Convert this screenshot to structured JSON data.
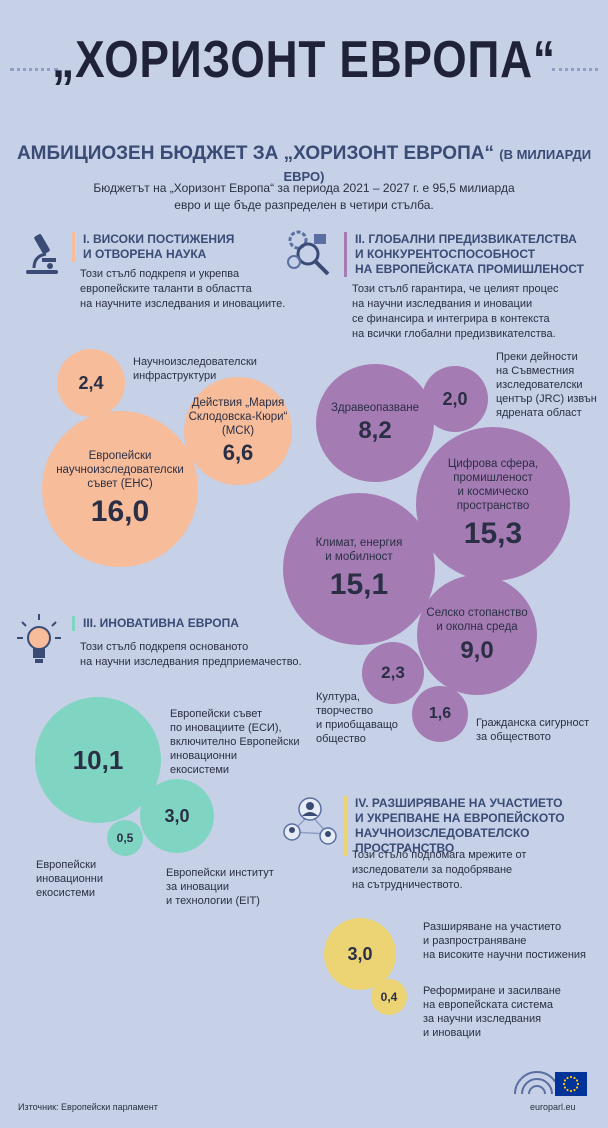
{
  "title": "„ХОРИЗОНТ ЕВРОПА“",
  "subtitle": "АМБИЦИОЗЕН БЮДЖЕТ ЗА „ХОРИЗОНТ ЕВРОПА“",
  "subtitle_unit": "(В МИЛИАРДИ ЕВРО)",
  "intro_line1": "Бюджетът на „Хоризонт Европа“ за периода 2021 – 2027 г. е 95,5 милиарда",
  "intro_line2": "евро и ще бъде разпределен в четири стълба.",
  "colors": {
    "background": "#c6d0e6",
    "pillar1": "#f7bc9a",
    "pillar2": "#a57bb3",
    "pillar3": "#7fd5c2",
    "pillar4": "#ecd374"
  },
  "pillar1": {
    "icon": "microscope-icon",
    "title1": "I. ВИСОКИ ПОСТИЖЕНИЯ",
    "title2": "И ОТВОРЕНА НАУКА",
    "desc1": "Този стълб подкрепя и укрепва",
    "desc2": "европейските таланти в областта",
    "desc3": "на научните изследвания и иновациите.",
    "infra_value": "2,4",
    "infra_label1": "Научноизследователски",
    "infra_label2": "инфраструктури",
    "msca_label1": "Действия „Мария",
    "msca_label2": "Склодовска-Кюри“",
    "msca_label3": "(МСК)",
    "msca_value": "6,6",
    "erc_label1": "Европейски",
    "erc_label2": "научноизследователски",
    "erc_label3": "съвет (ЕНС)",
    "erc_value": "16,0"
  },
  "pillar2": {
    "icon": "gears-magnifier-icon",
    "title1": "II. ГЛОБАЛНИ ПРЕДИЗВИКАТЕЛСТВА",
    "title2": "И КОНКУРЕНТОСПОСОБНОСТ",
    "title3": "НА ЕВРОПЕЙСКАТА ПРОМИШЛЕНОСТ",
    "desc1": "Този стълб гарантира, че целият процес",
    "desc2": "на научни изследвания и иновации",
    "desc3": "се финансира и интегрира в контекста",
    "desc4": "на всички глобални предизвикателства.",
    "jrc_value": "2,0",
    "jrc_label1": "Преки дейности",
    "jrc_label2": "на Съвместния",
    "jrc_label3": "изследователски",
    "jrc_label4": "център (JRC) извън",
    "jrc_label5": "ядрената област",
    "health_label": "Здравеопазване",
    "health_value": "8,2",
    "digital_label1": "Цифрова сфера,",
    "digital_label2": "промишленост",
    "digital_label3": "и космическо",
    "digital_label4": "пространство",
    "digital_value": "15,3",
    "climate_label1": "Климат, енергия",
    "climate_label2": "и мобилност",
    "climate_value": "15,1",
    "food_label1": "Селско стопанство",
    "food_label2": "и околна среда",
    "food_value": "9,0",
    "culture_value": "2,3",
    "culture_label1": "Култура,",
    "culture_label2": "творчество",
    "culture_label3": "и приобщаващо",
    "culture_label4": "общество",
    "security_value": "1,6",
    "security_label1": "Гражданска сигурност",
    "security_label2": "за обществото"
  },
  "pillar3": {
    "icon": "lightbulb-icon",
    "title": "III. ИНОВАТИВНА ЕВРОПА",
    "desc1": "Този стълб подкрепя основаното",
    "desc2": "на научни изследвания предприемачество.",
    "eic_value": "10,1",
    "eic_label1": "Европейски съвет",
    "eic_label2": "по иновациите (ЕСИ),",
    "eic_label3": "включително Европейски",
    "eic_label4": "иновационни",
    "eic_label5": "екосистеми",
    "eit_value": "3,0",
    "eit_label1": "Европейски институт",
    "eit_label2": "за иновации",
    "eit_label3": "и технологии (EIT)",
    "eco_value": "0,5",
    "eco_label1": "Европейски",
    "eco_label2": "иновационни",
    "eco_label3": "екосистеми"
  },
  "pillar4": {
    "icon": "network-people-icon",
    "title1": "IV. РАЗШИРЯВАНЕ НА УЧАСТИЕТО",
    "title2": "И УКРЕПВАНЕ НА ЕВРОПЕЙСКОТО",
    "title3": "НАУЧНОИЗСЛЕДОВАТЕЛСКО ПРОСТРАНСТВО",
    "desc1": "Този стълб подпомага мрежите от",
    "desc2": "изследователи за подобряване",
    "desc3": "на сътрудничеството.",
    "widen_value": "3,0",
    "widen_label1": "Разширяване на участието",
    "widen_label2": "и разпространяване",
    "widen_label3": "на високите научни постижения",
    "reform_value": "0,4",
    "reform_label1": "Реформиране и засилване",
    "reform_label2": "на европейската система",
    "reform_label3": "за научни изследвания",
    "reform_label4": "и иновации"
  },
  "source": "Източник: Европейски парламент",
  "site": "europarl.eu"
}
